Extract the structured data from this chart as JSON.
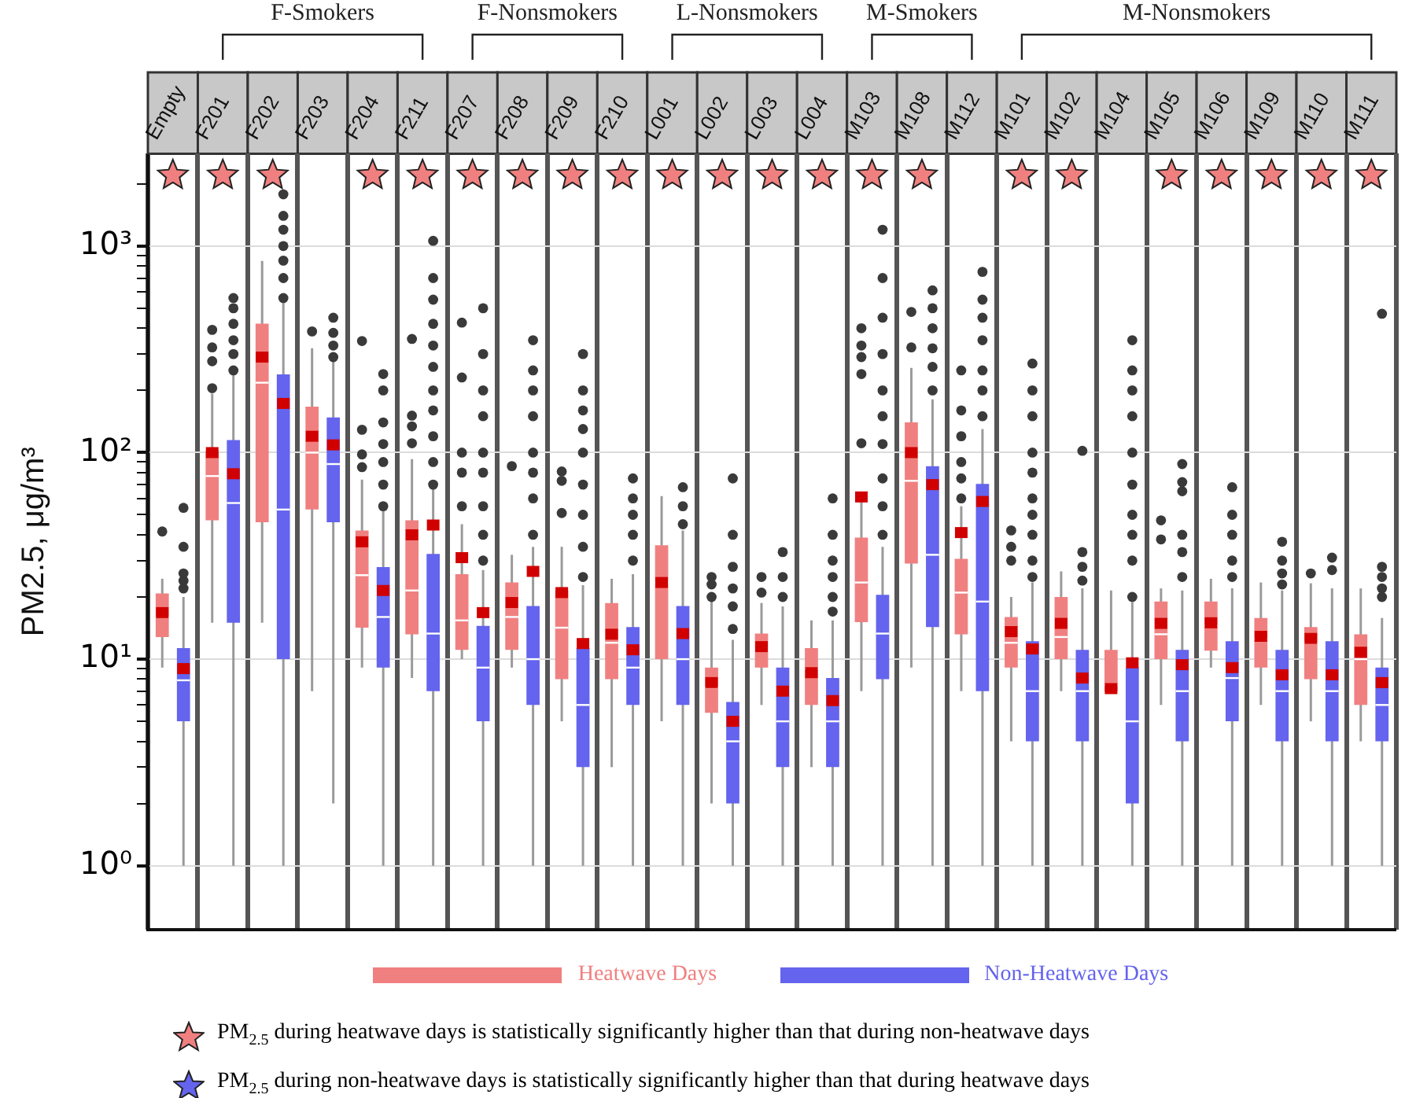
{
  "chart_data": {
    "type": "box",
    "ylabel": "PM2.5, μg/m³",
    "log": true,
    "grid": true,
    "legend": "bottom",
    "categories": [
      "Empty",
      "F201",
      "F202",
      "F203",
      "F204",
      "F211",
      "F207",
      "F208",
      "F209",
      "F210",
      "L001",
      "L002",
      "L003",
      "L004",
      "M103",
      "M108",
      "M112",
      "M101",
      "M102",
      "M104",
      "M105",
      "M106",
      "M109",
      "M110",
      "M111"
    ],
    "ylim": [
      0.49,
      2800
    ],
    "yticks": [
      {
        "value": 1,
        "label": "10⁰"
      },
      {
        "value": 2,
        "label": null
      },
      {
        "value": 3,
        "label": null
      },
      {
        "value": 4,
        "label": null
      },
      {
        "value": 5,
        "label": null
      },
      {
        "value": 6,
        "label": null
      },
      {
        "value": 7,
        "label": null
      },
      {
        "value": 8,
        "label": null
      },
      {
        "value": 9,
        "label": null
      },
      {
        "value": 10,
        "label": "10¹"
      },
      {
        "value": 20,
        "label": null
      },
      {
        "value": 30,
        "label": null
      },
      {
        "value": 40,
        "label": null
      },
      {
        "value": 50,
        "label": null
      },
      {
        "value": 60,
        "label": null
      },
      {
        "value": 70,
        "label": null
      },
      {
        "value": 80,
        "label": null
      },
      {
        "value": 90,
        "label": null
      },
      {
        "value": 100,
        "label": "10²"
      },
      {
        "value": 200,
        "label": null
      },
      {
        "value": 300,
        "label": null
      },
      {
        "value": 400,
        "label": null
      },
      {
        "value": 500,
        "label": null
      },
      {
        "value": 600,
        "label": null
      },
      {
        "value": 700,
        "label": null
      },
      {
        "value": 800,
        "label": null
      },
      {
        "value": 900,
        "label": null
      },
      {
        "value": 1000,
        "label": "10³"
      },
      {
        "value": 2000,
        "label": null
      }
    ],
    "series": [
      {
        "name": "Heatwave Days",
        "color": "#f08080",
        "boxes": [
          {
            "low": 9.1,
            "q1": 12.8,
            "median": 16,
            "q3": 20.8,
            "high": 24.5,
            "mean": 16.8,
            "outliers": [
              41.5
            ]
          },
          {
            "low": 15,
            "q1": 47,
            "median": 77,
            "q3": 102,
            "high": 193,
            "mean": 100,
            "outliers": [
              205,
              277,
              323,
              393
            ]
          },
          {
            "low": 15,
            "q1": 46,
            "median": 218,
            "q3": 421,
            "high": 848,
            "mean": 290
          },
          {
            "low": 7,
            "q1": 53,
            "median": 100,
            "q3": 167,
            "high": 320,
            "mean": 120,
            "outliers": [
              386
            ]
          },
          {
            "low": 9.1,
            "q1": 14.2,
            "median": 25.5,
            "q3": 42,
            "high": 74,
            "mean": 37,
            "outliers": [
              85,
              98,
              129,
              347
            ]
          },
          {
            "low": 8.1,
            "q1": 13.2,
            "median": 21.5,
            "q3": 47,
            "high": 93,
            "mean": 40,
            "outliers": [
              111,
              134,
              151,
              355
            ]
          },
          {
            "low": 10,
            "q1": 11.1,
            "median": 15.4,
            "q3": 25.8,
            "high": 45,
            "mean": 31,
            "outliers": [
              55,
              80,
              100,
              231,
              426
            ]
          },
          {
            "low": 9.1,
            "q1": 11.1,
            "median": 16,
            "q3": 23.5,
            "high": 32,
            "mean": 18.8,
            "outliers": [
              86
            ]
          },
          {
            "low": 5,
            "q1": 8,
            "median": 14.2,
            "q3": 21.5,
            "high": 35,
            "mean": 21,
            "outliers": [
              51,
              73,
              81
            ]
          },
          {
            "low": 3,
            "q1": 8,
            "median": 12,
            "q3": 18.7,
            "high": 24.5,
            "mean": 13.2
          },
          {
            "low": 5,
            "q1": 10,
            "median": 23.5,
            "q3": 35.6,
            "high": 61.6,
            "mean": 23.5
          },
          {
            "low": 2,
            "q1": 5.5,
            "median": 7.3,
            "q3": 9.1,
            "high": 19.6,
            "mean": 7.7,
            "outliers": [
              20,
              23,
              25
            ]
          },
          {
            "low": 6,
            "q1": 9.1,
            "median": 11,
            "q3": 13.3,
            "high": 18.7,
            "mean": 11.5,
            "outliers": [
              21,
              25
            ]
          },
          {
            "low": 3,
            "q1": 6,
            "median": 9,
            "q3": 11.3,
            "high": 15.4,
            "mean": 8.6
          },
          {
            "low": 7,
            "q1": 15.1,
            "median": 23.5,
            "q3": 38.8,
            "high": 61,
            "mean": 61,
            "outliers": [
              111,
              240,
              290,
              330,
              400
            ]
          },
          {
            "low": 9.1,
            "q1": 29,
            "median": 73,
            "q3": 140,
            "high": 257,
            "mean": 100,
            "outliers": [
              323,
              480
            ]
          },
          {
            "low": 7,
            "q1": 13.2,
            "median": 21,
            "q3": 30.6,
            "high": 55,
            "mean": 41,
            "outliers": [
              60,
              75,
              90,
              120,
              160,
              250
            ]
          },
          {
            "low": 4,
            "q1": 9.1,
            "median": 12,
            "q3": 16,
            "high": 20,
            "mean": 13.6,
            "outliers": [
              30,
              35,
              42
            ]
          },
          {
            "low": 7,
            "q1": 10,
            "median": 12.8,
            "q3": 20,
            "high": 26.6,
            "mean": 14.9
          },
          {
            "low": 7,
            "q1": 7,
            "median": 7.5,
            "q3": 11.1,
            "high": 21.5,
            "mean": 7.2
          },
          {
            "low": 6,
            "q1": 10,
            "median": 13.2,
            "q3": 19,
            "high": 22,
            "mean": 14.9,
            "outliers": [
              38,
              47
            ]
          },
          {
            "low": 9.1,
            "q1": 11,
            "median": 14.5,
            "q3": 19,
            "high": 24.5,
            "mean": 15
          },
          {
            "low": 6,
            "q1": 9.1,
            "median": 12.5,
            "q3": 15.8,
            "high": 23.5,
            "mean": 12.9
          },
          {
            "low": 5,
            "q1": 8,
            "median": 12,
            "q3": 14.3,
            "high": 23.3,
            "mean": 12.6,
            "outliers": [
              26
            ]
          },
          {
            "low": 4,
            "q1": 6,
            "median": 10,
            "q3": 13.2,
            "high": 22,
            "mean": 10.8
          }
        ]
      },
      {
        "name": "Non-Heatwave Days",
        "color": "#6464ee",
        "boxes": [
          {
            "low": 1,
            "q1": 5,
            "median": 7.9,
            "q3": 11.3,
            "high": 20,
            "mean": 9,
            "outliers": [
              22,
              24,
              26,
              35,
              54
            ]
          },
          {
            "low": 1,
            "q1": 15,
            "median": 57,
            "q3": 115,
            "high": 240,
            "mean": 79,
            "outliers": [
              250,
              300,
              350,
              420,
              500,
              560
            ]
          },
          {
            "low": 1,
            "q1": 10,
            "median": 53,
            "q3": 239,
            "high": 540,
            "mean": 173,
            "outliers": [
              560,
              700,
              850,
              1000,
              1200,
              1400,
              1780
            ]
          },
          {
            "low": 2,
            "q1": 46,
            "median": 88,
            "q3": 148,
            "high": 277,
            "mean": 109,
            "outliers": [
              290,
              330,
              380,
              450
            ]
          },
          {
            "low": 1,
            "q1": 9.1,
            "median": 16,
            "q3": 27.9,
            "high": 53,
            "mean": 21.5,
            "outliers": [
              55,
              70,
              90,
              110,
              140,
              200,
              240
            ]
          },
          {
            "low": 1,
            "q1": 7,
            "median": 13.3,
            "q3": 32.3,
            "high": 68,
            "mean": 44.6,
            "outliers": [
              70,
              90,
              120,
              160,
              200,
              260,
              330,
              420,
              550,
              700,
              1060
            ]
          },
          {
            "low": 1,
            "q1": 5,
            "median": 9.1,
            "q3": 14.5,
            "high": 27,
            "mean": 16.8,
            "outliers": [
              30,
              40,
              55,
              80,
              100,
              150,
              200,
              300,
              500
            ]
          },
          {
            "low": 1,
            "q1": 6,
            "median": 10,
            "q3": 18.1,
            "high": 35,
            "mean": 26.6,
            "outliers": [
              40,
              60,
              80,
              100,
              150,
              200,
              250,
              350
            ]
          },
          {
            "low": 1,
            "q1": 3,
            "median": 6,
            "q3": 11.3,
            "high": 22.8,
            "mean": 11.9,
            "outliers": [
              25,
              35,
              50,
              70,
              100,
              130,
              160,
              200,
              300
            ]
          },
          {
            "low": 1,
            "q1": 6,
            "median": 9.1,
            "q3": 14.3,
            "high": 25.8,
            "mean": 11.1,
            "outliers": [
              30,
              40,
              50,
              60,
              75
            ]
          },
          {
            "low": 1,
            "q1": 6,
            "median": 10,
            "q3": 18.1,
            "high": 42,
            "mean": 13.3,
            "outliers": [
              45,
              55,
              68
            ]
          },
          {
            "low": 1,
            "q1": 2,
            "median": 4,
            "q3": 6.2,
            "high": 12.4,
            "mean": 5,
            "outliers": [
              14,
              18,
              22,
              28,
              40,
              75
            ]
          },
          {
            "low": 1,
            "q1": 3,
            "median": 5,
            "q3": 9.1,
            "high": 18,
            "mean": 7,
            "outliers": [
              20,
              25,
              33
            ]
          },
          {
            "low": 1,
            "q1": 3,
            "median": 5,
            "q3": 8.1,
            "high": 15.4,
            "mean": 6.3,
            "outliers": [
              17,
              20,
              25,
              30,
              40,
              60
            ]
          },
          {
            "low": 1,
            "q1": 8,
            "median": 13.3,
            "q3": 20.5,
            "high": 35,
            "outliers": [
              40,
              55,
              75,
              110,
              150,
              200,
              300,
              450,
              700,
              1200
            ]
          },
          {
            "low": 1,
            "q1": 14.3,
            "median": 32,
            "q3": 86,
            "high": 181,
            "mean": 70,
            "outliers": [
              200,
              260,
              320,
              400,
              500,
              610
            ]
          },
          {
            "low": 1,
            "q1": 7,
            "median": 19,
            "q3": 70.5,
            "high": 130,
            "mean": 58,
            "outliers": [
              150,
              200,
              250,
              350,
              450,
              550,
              750
            ]
          },
          {
            "low": 1,
            "q1": 4,
            "median": 7,
            "q3": 12.2,
            "high": 23.5,
            "mean": 11.2,
            "outliers": [
              25,
              30,
              40,
              50,
              60,
              80,
              100,
              150,
              200,
              270
            ]
          },
          {
            "low": 1,
            "q1": 4,
            "median": 7,
            "q3": 11.1,
            "high": 22,
            "mean": 8.1,
            "outliers": [
              24,
              28,
              33,
              102
            ]
          },
          {
            "low": 1,
            "q1": 2,
            "median": 5,
            "q3": 9.1,
            "high": 18.9,
            "mean": 9.6,
            "outliers": [
              20,
              30,
              40,
              50,
              70,
              100,
              150,
              200,
              250,
              350
            ]
          },
          {
            "low": 1,
            "q1": 4,
            "median": 7,
            "q3": 11.1,
            "high": 21.5,
            "mean": 9.4,
            "outliers": [
              25,
              33,
              40,
              65,
              72,
              88
            ]
          },
          {
            "low": 1,
            "q1": 5,
            "median": 8.1,
            "q3": 12.2,
            "high": 22,
            "mean": 9.1,
            "outliers": [
              25,
              30,
              40,
              50,
              68
            ]
          },
          {
            "low": 1,
            "q1": 4,
            "median": 7,
            "q3": 11.1,
            "high": 21.5,
            "mean": 8.4,
            "outliers": [
              23,
              26,
              30,
              37
            ]
          },
          {
            "low": 1,
            "q1": 4,
            "median": 7,
            "q3": 12.2,
            "high": 22,
            "mean": 8.4,
            "outliers": [
              27,
              31
            ]
          },
          {
            "low": 1,
            "q1": 4,
            "median": 6,
            "q3": 9.1,
            "high": 15.8,
            "mean": 7.7,
            "outliers": [
              20,
              22,
              25,
              28,
              470
            ]
          }
        ]
      },
      {
        "type": "scatter",
        "marker": "star",
        "color": "#f08080",
        "x": [
          "Empty",
          "F201",
          "F202",
          "F204",
          "F211",
          "F207",
          "F208",
          "F209",
          "F210",
          "L001",
          "L002",
          "L003",
          "L004",
          "M103",
          "M108",
          "M101",
          "M102",
          "M105",
          "M106",
          "M109",
          "M110",
          "M111"
        ],
        "values": [
          2200,
          2200,
          2200,
          2200,
          2200,
          2200,
          2200,
          2200,
          2200,
          2200,
          2200,
          2200,
          2200,
          2200,
          2200,
          2200,
          2200,
          2200,
          2200,
          2200,
          2200,
          2200
        ]
      }
    ],
    "annotations": [
      "F-Smokers",
      "F-Nonsmokers",
      "L-Nonsmokers",
      "M-Smokers",
      "M-Nonsmokers",
      "PM$_{2.5}$ during heatwave days is statistically significantly higher than that during non-heatwave days",
      "PM$_{2.5}$ during non-heatwave days is statistically significantly higher than that during heatwave days"
    ]
  }
}
